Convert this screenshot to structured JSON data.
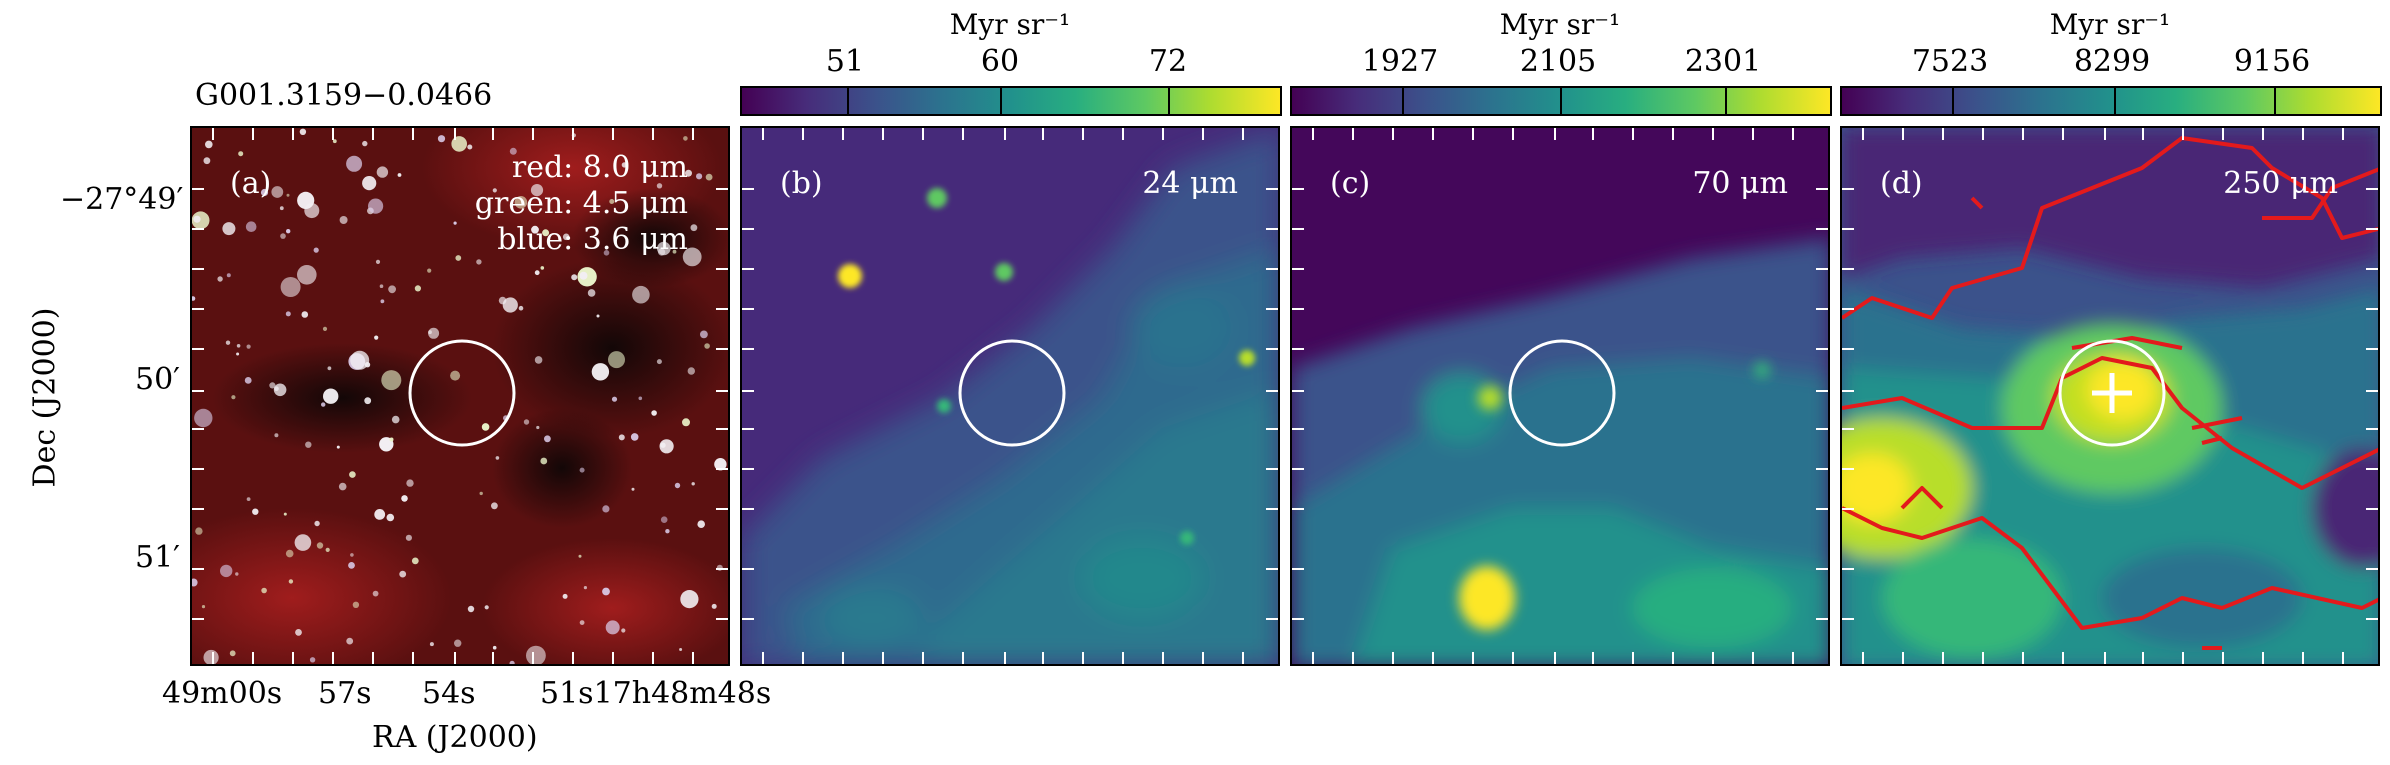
{
  "source_name": "G001.3159−0.0466",
  "colorbar_unit": "Myr sr⁻¹",
  "colorbars": [
    {
      "ticks": [
        "51",
        "60",
        "72"
      ]
    },
    {
      "ticks": [
        "1927",
        "2105",
        "2301"
      ]
    },
    {
      "ticks": [
        "7523",
        "8299",
        "9156"
      ]
    }
  ],
  "panels": [
    {
      "tag": "(a)",
      "bands": [
        "red: 8.0 μm",
        "green: 4.5 μm",
        "blue: 3.6 μm"
      ]
    },
    {
      "tag": "(b)",
      "band": "24 μm"
    },
    {
      "tag": "(c)",
      "band": "70 μm"
    },
    {
      "tag": "(d)",
      "band": "250 μm"
    }
  ],
  "y_axis": {
    "label": "Dec (J2000)",
    "ticks": [
      "−27°49′",
      "50′",
      "51′"
    ]
  },
  "x_axis": {
    "label": "RA (J2000)",
    "ticks": [
      "49m00s",
      "57s",
      "54s",
      "51s17h48m48s"
    ]
  },
  "colors": {
    "contour": "#e31a1c",
    "marker": "#ffffff"
  }
}
